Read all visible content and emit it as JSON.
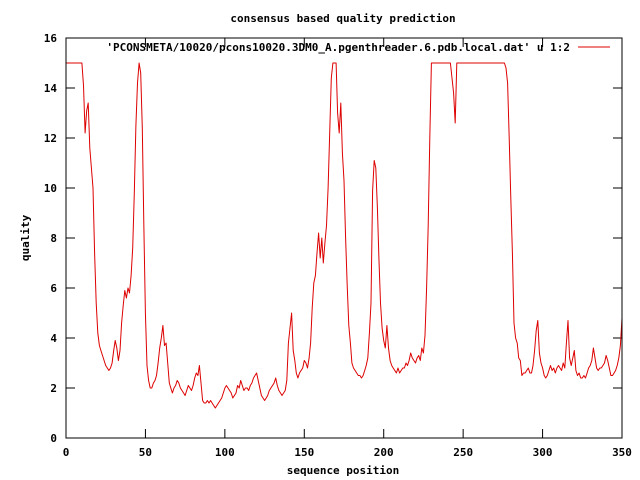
{
  "chart_data": {
    "type": "line",
    "title": "consensus based quality prediction",
    "xlabel": "sequence position",
    "ylabel": "quality",
    "xlim": [
      0,
      350
    ],
    "ylim": [
      0,
      16
    ],
    "xticks": [
      "0",
      "50",
      "100",
      "150",
      "200",
      "250",
      "300",
      "350"
    ],
    "yticks": [
      "0",
      "2",
      "4",
      "6",
      "8",
      "10",
      "12",
      "14",
      "16"
    ],
    "grid": false,
    "legend_position": "top-right",
    "series": [
      {
        "name": "'PCONSMETA/10020/pcons10020.3DM0_A.pgenthreader.6.pdb.local.dat' u 1:2",
        "color": "#dd0000",
        "x": [
          0,
          1,
          2,
          3,
          4,
          5,
          6,
          7,
          8,
          9,
          10,
          11,
          12,
          13,
          14,
          15,
          16,
          17,
          18,
          19,
          20,
          21,
          22,
          23,
          24,
          25,
          26,
          27,
          28,
          29,
          30,
          31,
          32,
          33,
          34,
          35,
          36,
          37,
          38,
          39,
          40,
          41,
          42,
          43,
          44,
          45,
          46,
          47,
          48,
          49,
          50,
          51,
          52,
          53,
          54,
          55,
          56,
          57,
          58,
          59,
          60,
          61,
          62,
          63,
          64,
          65,
          66,
          67,
          68,
          69,
          70,
          71,
          72,
          73,
          74,
          75,
          76,
          77,
          78,
          79,
          80,
          81,
          82,
          83,
          84,
          85,
          86,
          87,
          88,
          89,
          90,
          91,
          92,
          93,
          94,
          95,
          96,
          97,
          98,
          99,
          100,
          101,
          102,
          103,
          104,
          105,
          106,
          107,
          108,
          109,
          110,
          111,
          112,
          113,
          114,
          115,
          116,
          117,
          118,
          119,
          120,
          121,
          122,
          123,
          124,
          125,
          126,
          127,
          128,
          129,
          130,
          131,
          132,
          133,
          134,
          135,
          136,
          137,
          138,
          139,
          140,
          141,
          142,
          143,
          144,
          145,
          146,
          147,
          148,
          149,
          150,
          151,
          152,
          153,
          154,
          155,
          156,
          157,
          158,
          159,
          160,
          161,
          162,
          163,
          164,
          165,
          166,
          167,
          168,
          169,
          170,
          171,
          172,
          173,
          174,
          175,
          176,
          177,
          178,
          179,
          180,
          181,
          182,
          183,
          184,
          185,
          186,
          187,
          188,
          189,
          190,
          191,
          192,
          193,
          194,
          195,
          196,
          197,
          198,
          199,
          200,
          201,
          202,
          203,
          204,
          205,
          206,
          207,
          208,
          209,
          210,
          211,
          212,
          213,
          214,
          215,
          216,
          217,
          218,
          219,
          220,
          221,
          222,
          223,
          224,
          225,
          226,
          227,
          228,
          229,
          230,
          231,
          232,
          233,
          234,
          235,
          236,
          237,
          238,
          239,
          240,
          241,
          242,
          243,
          244,
          245,
          246,
          247,
          248,
          249,
          250,
          251,
          252,
          253,
          254,
          255,
          256,
          257,
          258,
          259,
          260,
          261,
          262,
          263,
          264,
          265,
          266,
          267,
          268,
          269,
          270,
          271,
          272,
          273,
          274,
          275,
          276,
          277,
          278,
          279,
          280,
          281,
          282,
          283,
          284,
          285,
          286,
          287,
          288,
          289,
          290,
          291,
          292,
          293,
          294,
          295,
          296,
          297,
          298,
          299,
          300,
          301,
          302,
          303,
          304,
          305,
          306,
          307,
          308,
          309,
          310,
          311,
          312,
          313,
          314,
          315,
          316,
          317,
          318,
          319,
          320,
          321,
          322,
          323,
          324,
          325,
          326,
          327,
          328,
          329,
          330,
          331,
          332,
          333,
          334,
          335,
          336,
          337,
          338,
          339,
          340,
          341,
          342,
          343,
          344,
          345,
          346,
          347,
          348,
          349,
          350
        ],
        "y": [
          15,
          15,
          15,
          15,
          15,
          15,
          15,
          15,
          15,
          15,
          15,
          14.1,
          12.2,
          13.1,
          13.4,
          11.6,
          10.8,
          10,
          7.4,
          5.4,
          4.2,
          3.7,
          3.5,
          3.3,
          3.1,
          2.9,
          2.8,
          2.7,
          2.8,
          3,
          3.5,
          3.9,
          3.6,
          3.1,
          3.5,
          4.6,
          5.3,
          5.9,
          5.6,
          6,
          5.8,
          6.5,
          7.6,
          9.8,
          12.5,
          14.2,
          15,
          14.6,
          12.4,
          8.6,
          5,
          2.9,
          2.3,
          2,
          2,
          2.2,
          2.3,
          2.5,
          3,
          3.6,
          4,
          4.5,
          3.7,
          3.8,
          3,
          2.2,
          2,
          1.8,
          2,
          2.1,
          2.3,
          2.2,
          2,
          1.9,
          1.8,
          1.7,
          1.9,
          2.1,
          2,
          1.9,
          2.1,
          2.4,
          2.6,
          2.5,
          2.9,
          2.2,
          1.5,
          1.4,
          1.4,
          1.5,
          1.4,
          1.5,
          1.4,
          1.3,
          1.2,
          1.3,
          1.4,
          1.5,
          1.6,
          1.8,
          2,
          2.1,
          2,
          1.9,
          1.8,
          1.6,
          1.7,
          1.8,
          2.1,
          2,
          2.3,
          2.1,
          1.9,
          2,
          2,
          1.9,
          2.1,
          2.2,
          2.4,
          2.5,
          2.6,
          2.3,
          2,
          1.7,
          1.6,
          1.5,
          1.6,
          1.7,
          1.9,
          2,
          2.1,
          2.2,
          2.4,
          2.1,
          1.9,
          1.8,
          1.7,
          1.8,
          1.9,
          2.3,
          3.8,
          4.4,
          5,
          3.5,
          3.1,
          2.6,
          2.4,
          2.6,
          2.7,
          2.8,
          3.1,
          3,
          2.8,
          3.2,
          3.8,
          5.2,
          6.2,
          6.5,
          7.4,
          8.2,
          7.2,
          8,
          7,
          7.8,
          8.5,
          10,
          12.2,
          14.4,
          15,
          15,
          15,
          13,
          12.2,
          13.4,
          11.4,
          10.3,
          8,
          6.1,
          4.5,
          3.8,
          3,
          2.8,
          2.7,
          2.6,
          2.5,
          2.5,
          2.4,
          2.5,
          2.7,
          2.9,
          3.2,
          4.2,
          5.4,
          9.9,
          11.1,
          10.8,
          9.2,
          7.2,
          5.4,
          4.4,
          3.9,
          3.6,
          4.5,
          3.6,
          3.1,
          2.9,
          2.8,
          2.7,
          2.6,
          2.8,
          2.6,
          2.7,
          2.8,
          2.8,
          3,
          2.9,
          3.1,
          3.4,
          3.2,
          3.1,
          3,
          3.2,
          3.3,
          3.1,
          3.6,
          3.4,
          4.1,
          6,
          8.5,
          12,
          15,
          15,
          15,
          15,
          15,
          15,
          15,
          15,
          15,
          15,
          15,
          15,
          15,
          14.4,
          13.8,
          12.6,
          15,
          15,
          15,
          15,
          15,
          15,
          15,
          15,
          15,
          15,
          15,
          15,
          15,
          15,
          15,
          15,
          15,
          15,
          15,
          15,
          15,
          15,
          15,
          15,
          15,
          15,
          15,
          15,
          15,
          15,
          15,
          14.8,
          14.2,
          12,
          9.6,
          7.4,
          4.6,
          4,
          3.8,
          3.2,
          3.1,
          2.5,
          2.6,
          2.6,
          2.7,
          2.8,
          2.6,
          2.6,
          2.9,
          3.5,
          4.3,
          4.7,
          3.4,
          3,
          2.8,
          2.5,
          2.4,
          2.5,
          2.7,
          2.9,
          2.7,
          2.8,
          2.6,
          2.8,
          2.9,
          2.8,
          2.7,
          3,
          2.8,
          3.8,
          4.7,
          3.2,
          2.9,
          3.2,
          3.5,
          2.7,
          2.5,
          2.6,
          2.4,
          2.4,
          2.5,
          2.4,
          2.6,
          2.8,
          2.9,
          3.1,
          3.6,
          3.2,
          2.8,
          2.7,
          2.8,
          2.8,
          2.9,
          3,
          3.3,
          3.1,
          2.8,
          2.5,
          2.5,
          2.6,
          2.7,
          2.9,
          3.2,
          3.7,
          4.8
        ]
      }
    ]
  }
}
